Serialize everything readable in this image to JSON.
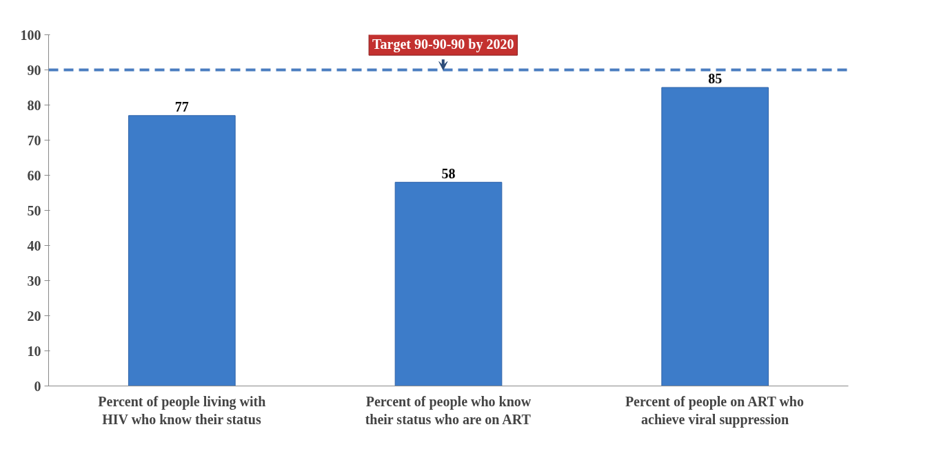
{
  "chart_data": {
    "type": "bar",
    "categories": [
      "Percent of people living with HIV who know their status",
      "Percent of people who know their status who are on ART",
      "Percent of people on ART who achieve viral suppression"
    ],
    "values": [
      77,
      58,
      85
    ],
    "color": "#3d7cc9",
    "ylim": [
      0,
      100
    ],
    "yticks": [
      0,
      10,
      20,
      30,
      40,
      50,
      60,
      70,
      80,
      90,
      100
    ],
    "grid": false,
    "data_labels": true,
    "ref_lines": [
      {
        "axis": "y",
        "value": 90,
        "label": "Target 90-90-90 by 2020",
        "color": "#4a7dc0",
        "line_style": "dashed"
      }
    ]
  }
}
